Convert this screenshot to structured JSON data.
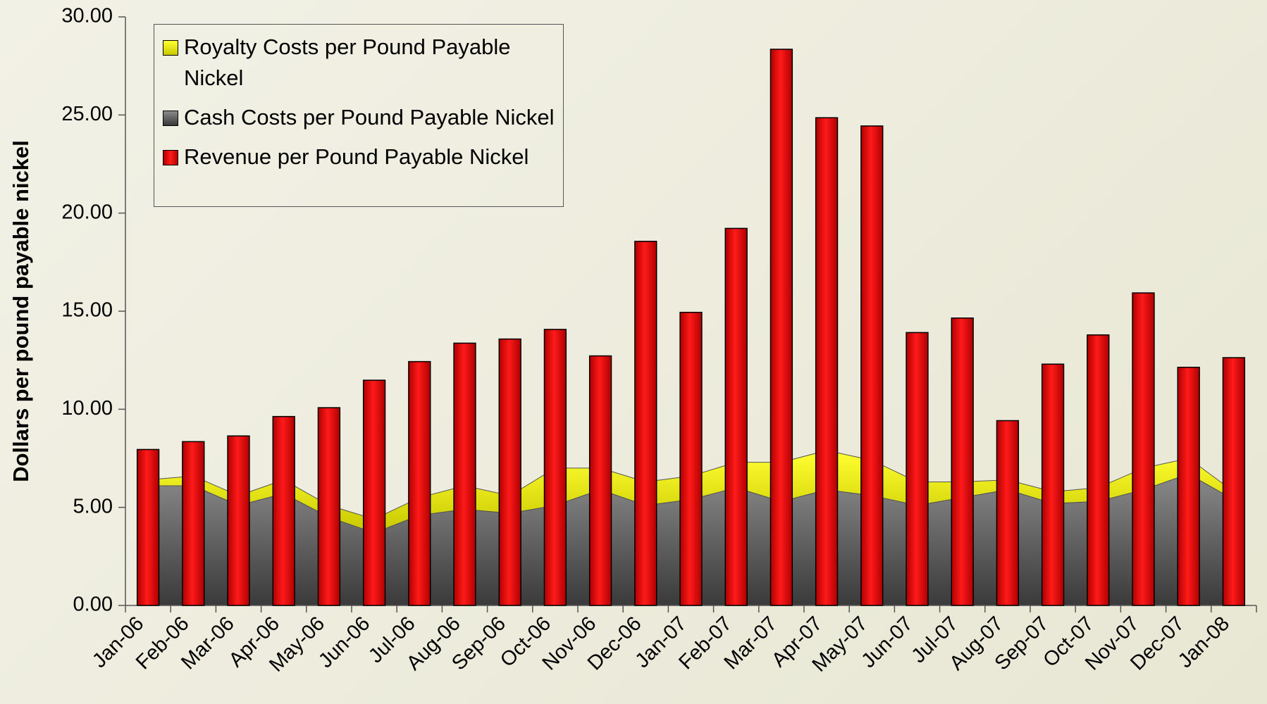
{
  "chart_data": {
    "type": "bar",
    "ylabel": "Dollars per pound payable nickel",
    "categories": [
      "Jan-06",
      "Feb-06",
      "Mar-06",
      "Apr-06",
      "May-06",
      "Jun-06",
      "Jul-06",
      "Aug-06",
      "Sep-06",
      "Oct-06",
      "Nov-06",
      "Dec-06",
      "Jan-07",
      "Feb-07",
      "Mar-07",
      "Apr-07",
      "May-07",
      "Jun-07",
      "Jul-07",
      "Aug-07",
      "Sep-07",
      "Oct-07",
      "Nov-07",
      "Dec-07",
      "Jan-08"
    ],
    "series": [
      {
        "name": "Royalty Costs per Pound Payable Nickel",
        "color": "#f0f000",
        "kind": "area",
        "values": [
          0.3,
          0.5,
          0.5,
          0.7,
          0.6,
          0.7,
          0.9,
          1.2,
          0.9,
          1.9,
          1.1,
          1.2,
          1.2,
          1.3,
          2.0,
          2.0,
          1.8,
          1.2,
          0.8,
          0.5,
          0.6,
          0.7,
          1.1,
          0.8,
          0.4
        ]
      },
      {
        "name": "Cash Costs per Pound Payable Nickel",
        "color": "#707070",
        "kind": "area",
        "values": [
          6.1,
          6.1,
          5.1,
          5.7,
          4.5,
          3.7,
          4.6,
          4.9,
          4.7,
          5.1,
          5.9,
          5.1,
          5.4,
          6.0,
          5.3,
          5.9,
          5.6,
          5.1,
          5.5,
          5.9,
          5.2,
          5.3,
          5.9,
          6.7,
          5.4
        ]
      },
      {
        "name": "Revenue per Pound Payable Nickel",
        "color": "#ee0000",
        "kind": "bar",
        "values": [
          7.95,
          8.35,
          8.64,
          9.63,
          10.08,
          11.48,
          12.43,
          13.37,
          13.58,
          14.07,
          12.72,
          18.56,
          14.94,
          19.22,
          28.35,
          24.86,
          24.44,
          13.91,
          14.65,
          9.42,
          12.3,
          13.79,
          15.93,
          12.14,
          12.63
        ]
      }
    ],
    "ylim": [
      0,
      30
    ],
    "yticks": [
      {
        "value": 0,
        "label": "0.00"
      },
      {
        "value": 5,
        "label": "5.00"
      },
      {
        "value": 10,
        "label": "10.00"
      },
      {
        "value": 15,
        "label": "15.00"
      },
      {
        "value": 20,
        "label": "20.00"
      },
      {
        "value": 25,
        "label": "25.00"
      },
      {
        "value": 30,
        "label": "30.00"
      }
    ],
    "legend": "upper-left"
  }
}
